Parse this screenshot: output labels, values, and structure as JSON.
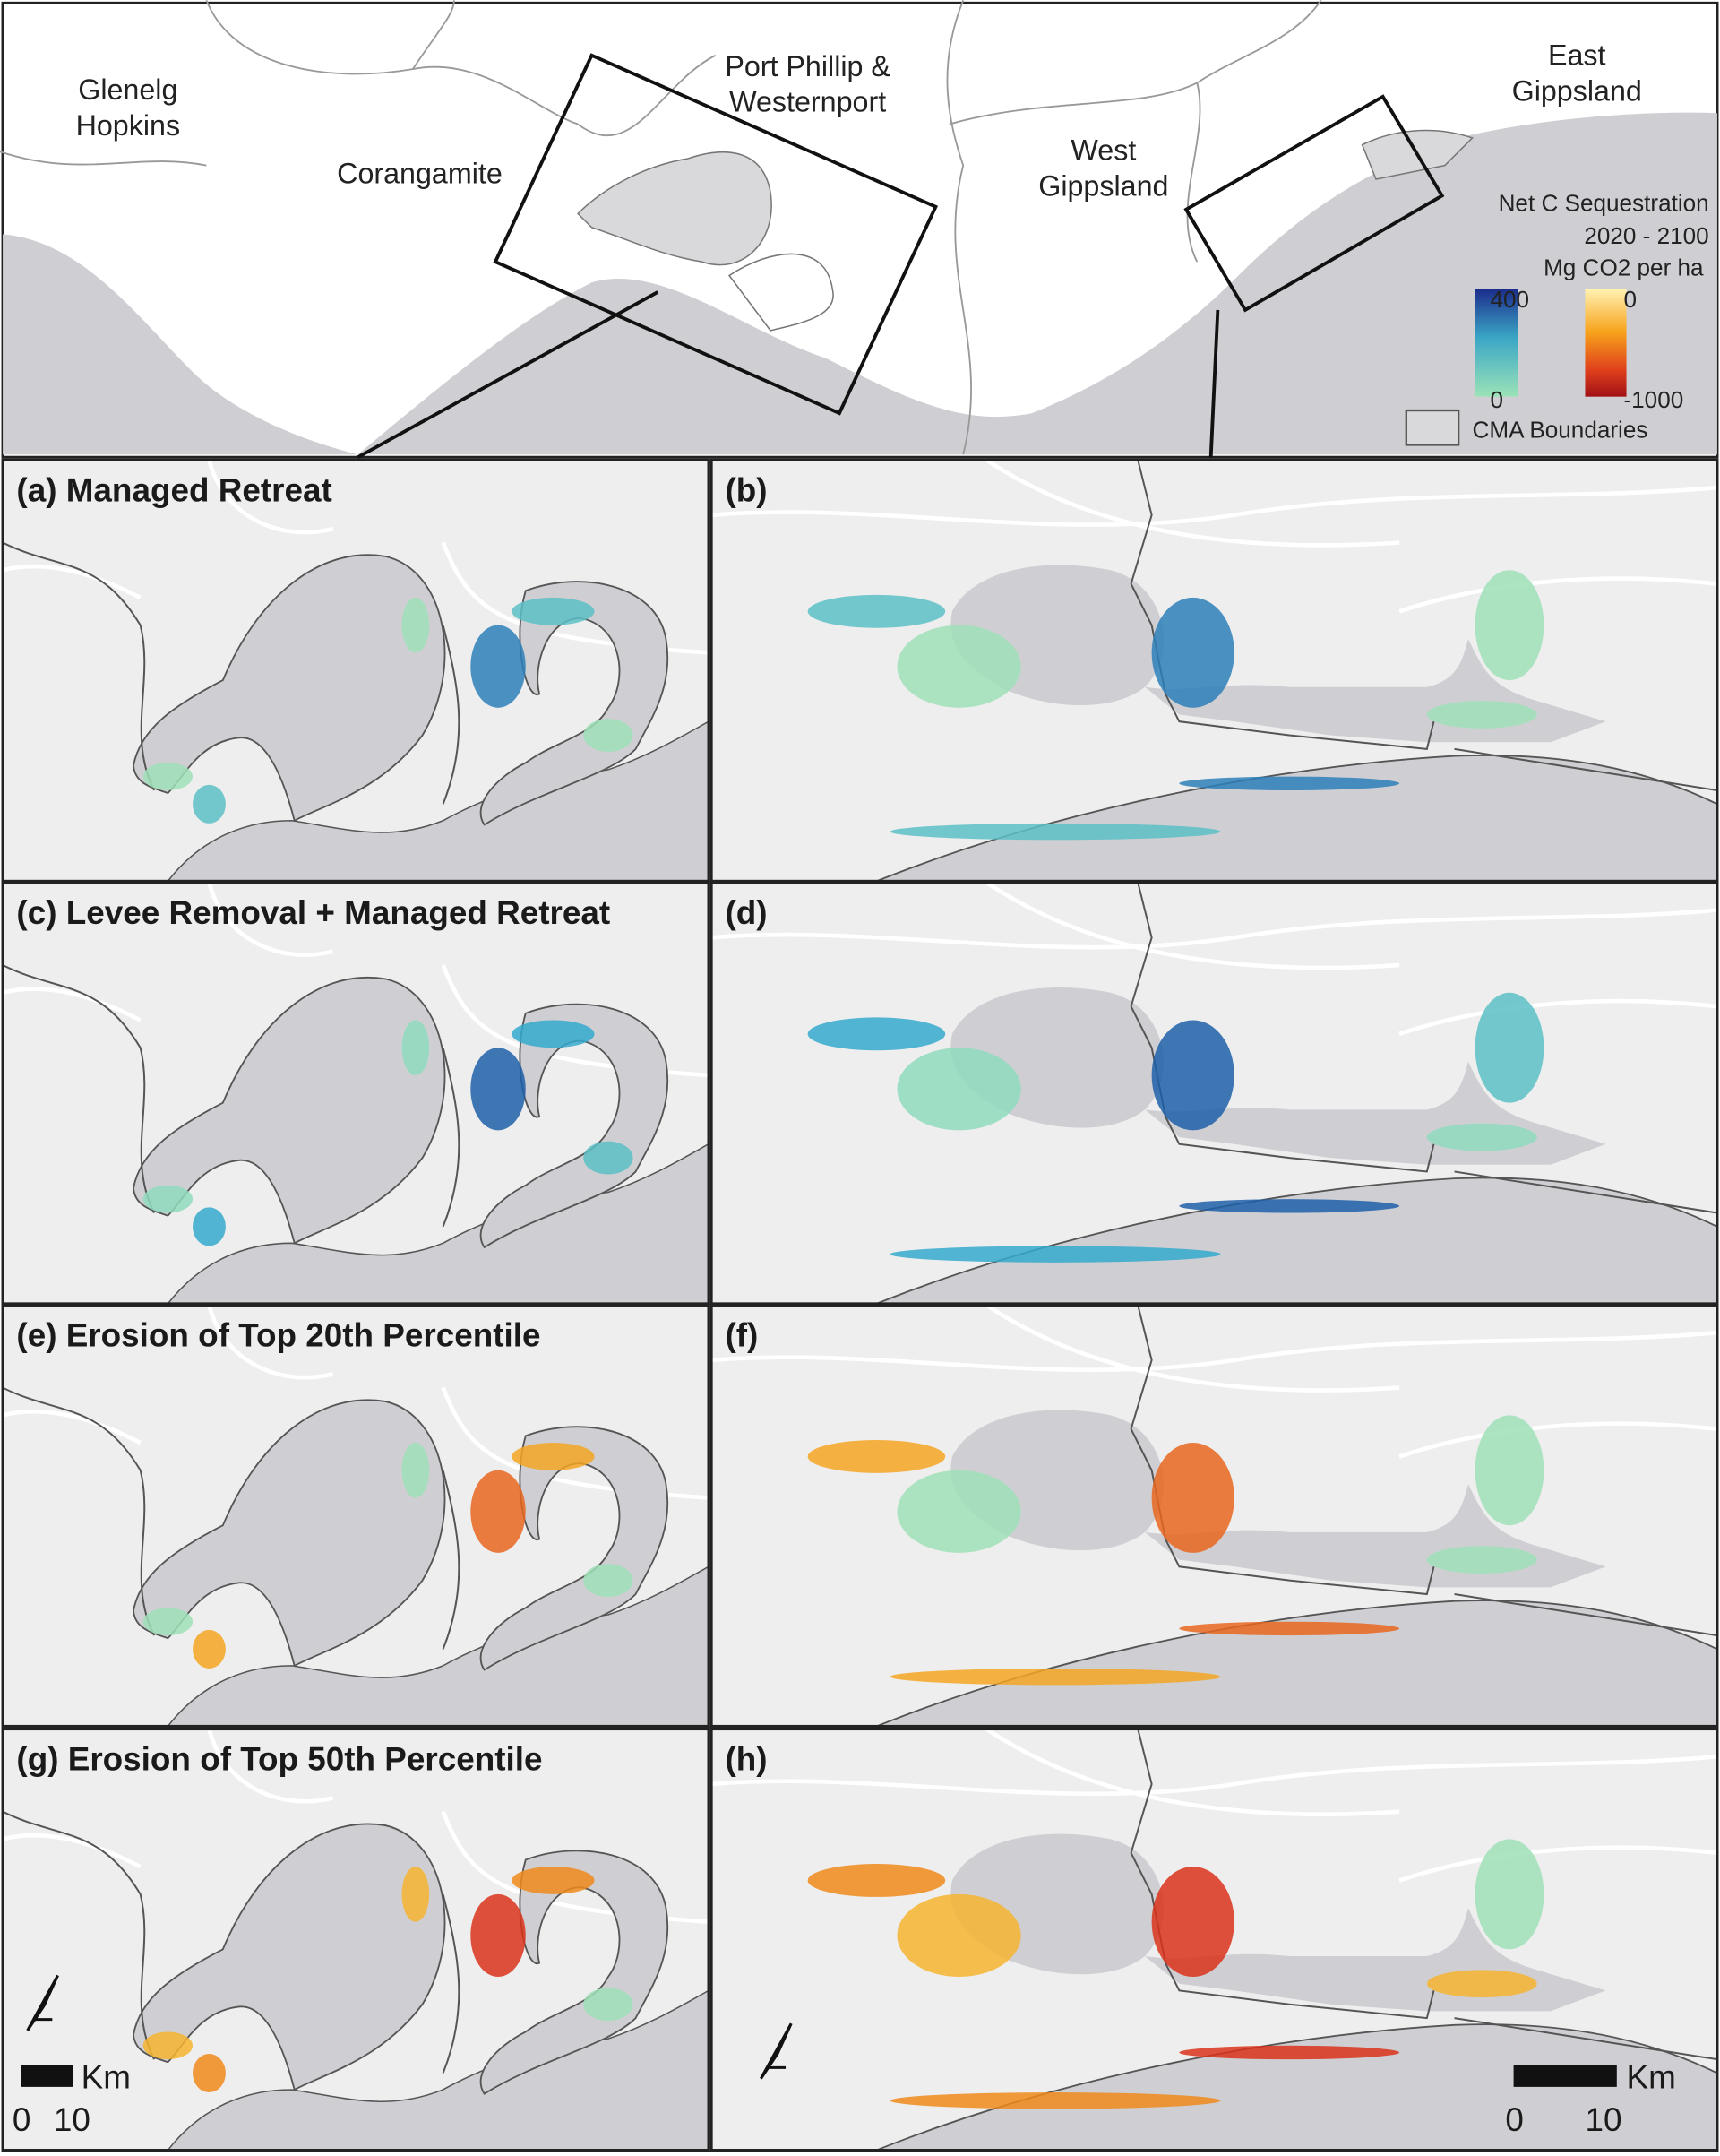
{
  "overview": {
    "regions": [
      {
        "lines": [
          "Glenelg",
          "Hopkins"
        ]
      },
      {
        "lines": [
          "Corangamite"
        ]
      },
      {
        "lines": [
          "Port Phillip &",
          "Westernport"
        ]
      },
      {
        "lines": [
          "West",
          "Gippsland"
        ]
      },
      {
        "lines": [
          "East",
          "Gippsland"
        ]
      }
    ],
    "legend": {
      "title": [
        "Net C Sequestration",
        "2020 - 2100"
      ],
      "units": "Mg CO2 per ha",
      "gain": {
        "max": 400,
        "min": 0
      },
      "loss": {
        "max": 0,
        "min": -1000
      },
      "boundary": "CMA Boundaries"
    }
  },
  "panels": [
    {
      "label": "(a) Managed Retreat"
    },
    {
      "label": "(b)"
    },
    {
      "label": "(c) Levee Removal + Managed Retreat"
    },
    {
      "label": "(d)"
    },
    {
      "label": "(e) Erosion of Top 20th Percentile"
    },
    {
      "label": "(f)"
    },
    {
      "label": "(g) Erosion of Top 50th Percentile"
    },
    {
      "label": "(h)"
    }
  ],
  "scale_bars": [
    {
      "unit": "Km",
      "ticks": [
        0,
        10
      ]
    },
    {
      "unit": "Km",
      "ticks": [
        0,
        10
      ]
    }
  ]
}
